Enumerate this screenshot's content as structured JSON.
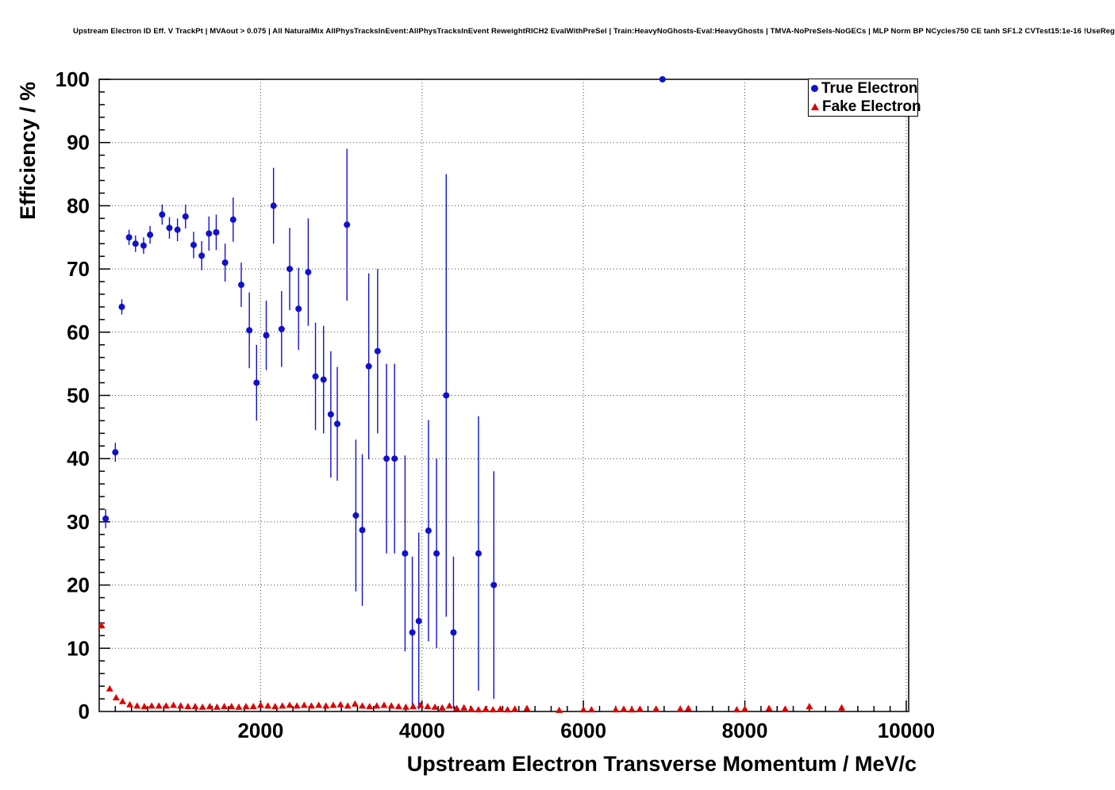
{
  "title": "Upstream Electron ID Eff. V TrackPt | MVAout > 0.075 | All NaturalMix AllPhysTracksInEvent:AllPhysTracksInEvent ReweightRICH2 EvalWithPreSel | Train:HeavyNoGhosts-Eval:HeavyGhosts | TMVA-NoPreSels-NoGECs | MLP Norm BP NCycles750 CE tanh SF1.2 CVTest15:1e-16 !UseReg",
  "chart_data": {
    "type": "scatter",
    "title": "Upstream Electron ID Eff. V TrackPt | MVAout > 0.075 | All NaturalMix AllPhysTracksInEvent:AllPhysTracksInEvent ReweightRICH2 EvalWithPreSel | Train:HeavyNoGhosts-Eval:HeavyGhosts | TMVA-NoPreSels-NoGECs | MLP Norm BP NCycles750 CE tanh SF1.2 CVTest15:1e-16 !UseReg",
    "xlabel": "Upstream Electron Transverse Momentum / MeV/c",
    "ylabel": "Efficiency / %",
    "xlim": [
      0,
      10030
    ],
    "ylim": [
      0,
      100
    ],
    "x_major_ticks": [
      2000,
      4000,
      6000,
      8000,
      10000
    ],
    "x_minor_step": 200,
    "y_major_ticks": [
      0,
      10,
      20,
      30,
      40,
      50,
      60,
      70,
      80,
      90,
      100
    ],
    "y_minor_step": 2,
    "grid": true,
    "legend_position": "top-right",
    "series": [
      {
        "name": "True Electron",
        "color": "#1111cc",
        "marker": "circle",
        "points": [
          [
            80,
            30.5,
            1.5
          ],
          [
            200,
            41,
            1.5
          ],
          [
            280,
            64,
            1.2
          ],
          [
            370,
            75,
            1.2
          ],
          [
            450,
            74,
            1.3
          ],
          [
            550,
            73.7,
            1.3
          ],
          [
            630,
            75.4,
            1.4
          ],
          [
            780,
            78.6,
            1.6
          ],
          [
            870,
            76.5,
            1.7
          ],
          [
            970,
            76.2,
            1.8
          ],
          [
            1070,
            78.3,
            1.9
          ],
          [
            1170,
            73.8,
            2.1
          ],
          [
            1270,
            72.1,
            2.3
          ],
          [
            1360,
            75.6,
            2.7
          ],
          [
            1450,
            75.8,
            2.8
          ],
          [
            1560,
            71,
            3
          ],
          [
            1660,
            77.8,
            3.5
          ],
          [
            1760,
            67.5,
            3.5
          ],
          [
            1860,
            60.3,
            6
          ],
          [
            1950,
            52,
            6
          ],
          [
            2070,
            59.5,
            5.5
          ],
          [
            2160,
            80,
            6
          ],
          [
            2260,
            60.5,
            6
          ],
          [
            2360,
            70,
            6.5
          ],
          [
            2470,
            63.7,
            6.5
          ],
          [
            2590,
            69.5,
            8.5
          ],
          [
            2680,
            53,
            8.5
          ],
          [
            2780,
            52.5,
            8.5
          ],
          [
            2870,
            47,
            10
          ],
          [
            2950,
            45.5,
            9
          ],
          [
            3070,
            77,
            12
          ],
          [
            3180,
            31,
            12
          ],
          [
            3260,
            28.7,
            12
          ],
          [
            3340,
            54.6,
            14.7
          ],
          [
            3450,
            57,
            13
          ],
          [
            3560,
            40,
            15
          ],
          [
            3660,
            40,
            15
          ],
          [
            3790,
            25,
            15.5
          ],
          [
            3880,
            12.5,
            12
          ],
          [
            3960,
            14.3,
            14
          ],
          [
            4080,
            28.6,
            17.5
          ],
          [
            4180,
            25,
            15
          ],
          [
            4300,
            50,
            35
          ],
          [
            4390,
            12.5,
            12
          ],
          [
            4700,
            25,
            21.7
          ],
          [
            4890,
            20,
            18
          ],
          [
            6980,
            100,
            0.4
          ]
        ]
      },
      {
        "name": "Fake Electron",
        "color": "#dd0000",
        "marker": "triangle",
        "points": [
          [
            30,
            13.6,
            0.5
          ],
          [
            130,
            3.6,
            0.4
          ],
          [
            210,
            2.2,
            0.3
          ],
          [
            290,
            1.6,
            0.3
          ],
          [
            380,
            1.1,
            0.2
          ],
          [
            470,
            0.9,
            0.2
          ],
          [
            560,
            0.8,
            0.2
          ],
          [
            650,
            0.9,
            0.2
          ],
          [
            740,
            0.9,
            0.2
          ],
          [
            830,
            0.9,
            0.2
          ],
          [
            920,
            1.0,
            0.2
          ],
          [
            1010,
            0.9,
            0.2
          ],
          [
            1100,
            0.8,
            0.2
          ],
          [
            1190,
            0.8,
            0.2
          ],
          [
            1280,
            0.7,
            0.2
          ],
          [
            1370,
            0.8,
            0.2
          ],
          [
            1460,
            0.7,
            0.2
          ],
          [
            1550,
            0.8,
            0.2
          ],
          [
            1640,
            0.8,
            0.2
          ],
          [
            1730,
            0.7,
            0.2
          ],
          [
            1820,
            0.8,
            0.2
          ],
          [
            1910,
            0.8,
            0.2
          ],
          [
            2000,
            1.0,
            0.2
          ],
          [
            2090,
            0.9,
            0.2
          ],
          [
            2180,
            0.8,
            0.2
          ],
          [
            2270,
            0.9,
            0.2
          ],
          [
            2360,
            1.0,
            0.2
          ],
          [
            2450,
            0.9,
            0.2
          ],
          [
            2540,
            1.0,
            0.2
          ],
          [
            2630,
            0.9,
            0.2
          ],
          [
            2720,
            1.0,
            0.3
          ],
          [
            2810,
            0.9,
            0.3
          ],
          [
            2900,
            1.0,
            0.3
          ],
          [
            2990,
            1.1,
            0.3
          ],
          [
            3080,
            0.9,
            0.3
          ],
          [
            3170,
            1.2,
            0.3
          ],
          [
            3260,
            0.9,
            0.3
          ],
          [
            3350,
            0.8,
            0.3
          ],
          [
            3440,
            0.9,
            0.3
          ],
          [
            3530,
            1.0,
            0.3
          ],
          [
            3620,
            0.9,
            0.3
          ],
          [
            3710,
            0.8,
            0.3
          ],
          [
            3800,
            0.7,
            0.3
          ],
          [
            3890,
            0.8,
            0.3
          ],
          [
            3980,
            1.0,
            0.3
          ],
          [
            4070,
            0.8,
            0.3
          ],
          [
            4160,
            0.7,
            0.3
          ],
          [
            4250,
            0.6,
            0.3
          ],
          [
            4340,
            0.9,
            0.3
          ],
          [
            4430,
            0.5,
            0.2
          ],
          [
            4520,
            0.6,
            0.3
          ],
          [
            4610,
            0.4,
            0.2
          ],
          [
            4700,
            0.3,
            0.2
          ],
          [
            4790,
            0.4,
            0.2
          ],
          [
            4880,
            0.3,
            0.2
          ],
          [
            4970,
            0.4,
            0.2
          ],
          [
            5060,
            0.3,
            0.2
          ],
          [
            5150,
            0.4,
            0.2
          ],
          [
            5300,
            0.5,
            0.3
          ],
          [
            5700,
            0.2,
            0.2
          ],
          [
            6000,
            0.3,
            0.2
          ],
          [
            6100,
            0.3,
            0.2
          ],
          [
            6400,
            0.3,
            0.2
          ],
          [
            6500,
            0.4,
            0.2
          ],
          [
            6600,
            0.3,
            0.2
          ],
          [
            6700,
            0.4,
            0.2
          ],
          [
            6900,
            0.4,
            0.2
          ],
          [
            7200,
            0.4,
            0.2
          ],
          [
            7300,
            0.5,
            0.3
          ],
          [
            7900,
            0.3,
            0.2
          ],
          [
            8000,
            0.4,
            0.3
          ],
          [
            8300,
            0.5,
            0.3
          ],
          [
            8500,
            0.4,
            0.3
          ],
          [
            8800,
            0.8,
            0.4
          ],
          [
            9200,
            0.6,
            0.4
          ]
        ]
      }
    ]
  },
  "legend": {
    "entries": [
      {
        "label": "True Electron"
      },
      {
        "label": "Fake Electron"
      }
    ]
  }
}
